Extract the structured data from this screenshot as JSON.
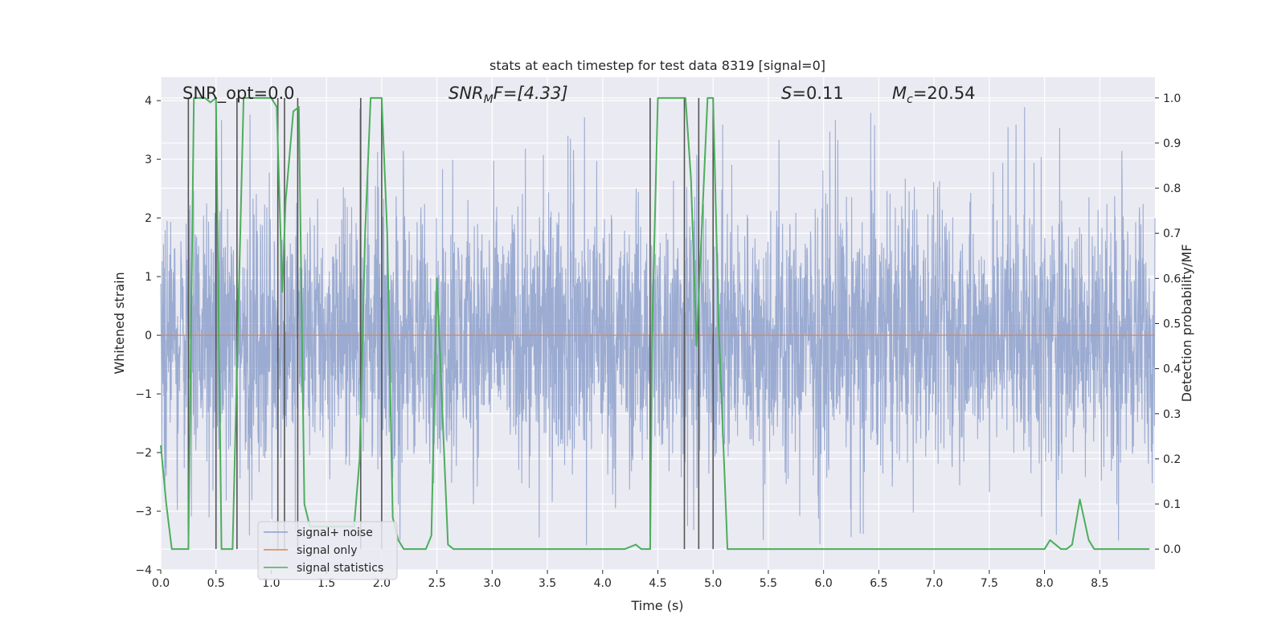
{
  "chart_data": {
    "type": "line",
    "title": "stats at each timestep for test data 8319 [signal=0]",
    "xlabel": "Time (s)",
    "ylabel": "Whitened strain",
    "y2label": "Detection probability/MF",
    "xlim": [
      0.0,
      9.0
    ],
    "ylim": [
      -4.0,
      4.4
    ],
    "y2lim": [
      -0.046,
      1.046
    ],
    "x_ticks": [
      0.0,
      0.5,
      1.0,
      1.5,
      2.0,
      2.5,
      3.0,
      3.5,
      4.0,
      4.5,
      5.0,
      5.5,
      6.0,
      6.5,
      7.0,
      7.5,
      8.0,
      8.5
    ],
    "x_tick_labels": [
      "0.0",
      "0.5",
      "1.0",
      "1.5",
      "2.0",
      "2.5",
      "3.0",
      "3.5",
      "4.0",
      "4.5",
      "5.0",
      "5.5",
      "6.0",
      "6.5",
      "7.0",
      "7.5",
      "8.0",
      "8.5"
    ],
    "y_ticks": [
      4,
      3,
      2,
      1,
      0,
      -1,
      -2,
      -3,
      -4
    ],
    "y_tick_labels": [
      "4",
      "3",
      "2",
      "1",
      "0",
      "−1",
      "−2",
      "−3",
      "−4"
    ],
    "y2_ticks": [
      1.0,
      0.9,
      0.8,
      0.7,
      0.6,
      0.5,
      0.4,
      0.3,
      0.2,
      0.1,
      0.0
    ],
    "y2_tick_labels": [
      "1.0",
      "0.9",
      "0.8",
      "0.7",
      "0.6",
      "0.5",
      "0.4",
      "0.3",
      "0.2",
      "0.1",
      "0.0"
    ],
    "annotations": {
      "snr_opt": "SNR_opt=0.0",
      "snr_mf_sym": "SNR",
      "snr_mf_sub": "M",
      "snr_mf_rest": "F=[4.33]",
      "s_sym": "S",
      "s_val": "=0.11",
      "mc_sym": "M",
      "mc_sub": "c",
      "mc_val": "=20.54"
    },
    "legend": {
      "position": "lower-left",
      "entries": [
        "signal+ noise",
        "signal only",
        "signal statistics"
      ]
    },
    "series": [
      {
        "name": "signal+ noise",
        "color": "#8da0cb",
        "kind": "noise",
        "band_low": -2.1,
        "band_high": 2.1,
        "peak_high": 3.9,
        "peak_low": -3.6
      },
      {
        "name": "signal only",
        "color": "#dd8452",
        "kind": "constant",
        "value": 0.0
      },
      {
        "name": "signal statistics",
        "color": "#4cae5c",
        "axis": "right",
        "x": [
          0.0,
          0.05,
          0.1,
          0.2,
          0.25,
          0.3,
          0.35,
          0.4,
          0.45,
          0.5,
          0.55,
          0.6,
          0.65,
          0.7,
          0.75,
          0.8,
          0.85,
          0.9,
          0.95,
          1.0,
          1.05,
          1.1,
          1.13,
          1.2,
          1.25,
          1.3,
          1.35,
          1.4,
          1.45,
          1.5,
          1.55,
          1.6,
          1.65,
          1.7,
          1.75,
          1.8,
          1.85,
          1.9,
          1.95,
          2.0,
          2.05,
          2.1,
          2.15,
          2.2,
          2.3,
          2.4,
          2.45,
          2.5,
          2.55,
          2.6,
          2.65,
          2.7,
          3.0,
          3.5,
          4.0,
          4.2,
          4.3,
          4.35,
          4.43,
          4.45,
          4.5,
          4.75,
          4.8,
          4.85,
          4.95,
          5.0,
          5.05,
          5.13,
          5.5,
          6.0,
          6.5,
          7.0,
          7.5,
          7.8,
          8.0,
          8.05,
          8.1,
          8.15,
          8.2,
          8.25,
          8.32,
          8.4,
          8.45,
          8.5,
          8.7,
          8.95
        ],
        "values": [
          0.23,
          0.1,
          0.0,
          0.0,
          0.0,
          1.0,
          1.0,
          1.0,
          0.99,
          1.0,
          0.0,
          0.0,
          0.0,
          0.5,
          1.0,
          1.0,
          1.0,
          1.0,
          1.0,
          1.0,
          0.98,
          0.57,
          0.77,
          0.97,
          0.98,
          0.1,
          0.05,
          0.05,
          0.05,
          0.05,
          0.05,
          0.05,
          0.05,
          0.05,
          0.05,
          0.2,
          0.7,
          1.0,
          1.0,
          1.0,
          0.7,
          0.07,
          0.02,
          0.0,
          0.0,
          0.0,
          0.03,
          0.6,
          0.3,
          0.01,
          0.0,
          0.0,
          0.0,
          0.0,
          0.0,
          0.0,
          0.01,
          0.0,
          0.0,
          0.5,
          1.0,
          1.0,
          0.82,
          0.45,
          1.0,
          1.0,
          0.5,
          0.0,
          0.0,
          0.0,
          0.0,
          0.0,
          0.0,
          0.0,
          0.0,
          0.02,
          0.01,
          0.0,
          0.0,
          0.01,
          0.11,
          0.02,
          0.0,
          0.0,
          0.0,
          0.0
        ]
      }
    ],
    "event_markers": [
      0.25,
      0.5,
      0.69,
      1.06,
      1.12,
      1.24,
      1.81,
      2.0,
      4.43,
      4.74,
      4.87,
      5.0
    ]
  }
}
